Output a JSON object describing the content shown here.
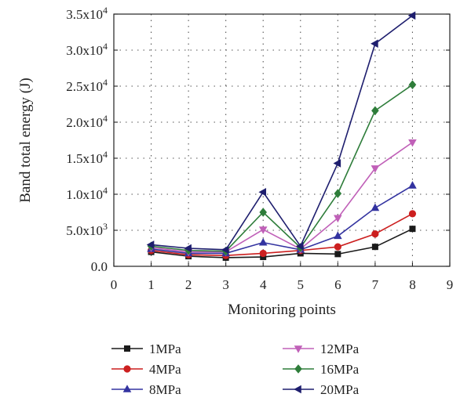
{
  "chart_data": {
    "type": "line",
    "title": "",
    "xlabel": "Monitoring points",
    "ylabel": "Band total energy (J)",
    "xlim": [
      0,
      9
    ],
    "ylim": [
      0,
      35000
    ],
    "x_ticks": [
      {
        "value": 0,
        "label": "0"
      },
      {
        "value": 1,
        "label": "1"
      },
      {
        "value": 2,
        "label": "2"
      },
      {
        "value": 3,
        "label": "3"
      },
      {
        "value": 4,
        "label": "4"
      },
      {
        "value": 5,
        "label": "5"
      },
      {
        "value": 6,
        "label": "6"
      },
      {
        "value": 7,
        "label": "7"
      },
      {
        "value": 8,
        "label": "8"
      },
      {
        "value": 9,
        "label": "9"
      }
    ],
    "y_ticks": [
      {
        "value": 0,
        "label": "0.0",
        "exp": ""
      },
      {
        "value": 5000,
        "label": "5.0x10",
        "exp": "3"
      },
      {
        "value": 10000,
        "label": "1.0x10",
        "exp": "4"
      },
      {
        "value": 15000,
        "label": "1.5x10",
        "exp": "4"
      },
      {
        "value": 20000,
        "label": "2.0x10",
        "exp": "4"
      },
      {
        "value": 25000,
        "label": "2.5x10",
        "exp": "4"
      },
      {
        "value": 30000,
        "label": "3.0x10",
        "exp": "4"
      },
      {
        "value": 35000,
        "label": "3.5x10",
        "exp": "4"
      }
    ],
    "grid": true,
    "legend_position": "bottom",
    "x": [
      1,
      2,
      3,
      4,
      5,
      6,
      7,
      8
    ],
    "series": [
      {
        "name": "1MPa",
        "color": "#1a1a1a",
        "marker": "square",
        "values": [
          2000,
          1400,
          1200,
          1300,
          1800,
          1700,
          2700,
          5200
        ]
      },
      {
        "name": "4MPa",
        "color": "#cc1f1f",
        "marker": "circle",
        "values": [
          2200,
          1600,
          1500,
          1800,
          2200,
          2700,
          4500,
          7300
        ]
      },
      {
        "name": "8MPa",
        "color": "#3333a0",
        "marker": "triangle-up",
        "values": [
          2400,
          1800,
          1800,
          3300,
          2300,
          4200,
          8100,
          11200
        ]
      },
      {
        "name": "12MPa",
        "color": "#c060b8",
        "marker": "triangle-down",
        "values": [
          2600,
          2000,
          2000,
          5100,
          2400,
          6700,
          13600,
          17200
        ]
      },
      {
        "name": "16MPa",
        "color": "#2e7d3a",
        "marker": "diamond",
        "values": [
          2800,
          2200,
          2100,
          7500,
          2600,
          10100,
          21600,
          25200
        ]
      },
      {
        "name": "20MPa",
        "color": "#1e1e6e",
        "marker": "triangle-left",
        "values": [
          3000,
          2500,
          2300,
          10300,
          2800,
          14300,
          30900,
          34800
        ]
      }
    ]
  }
}
